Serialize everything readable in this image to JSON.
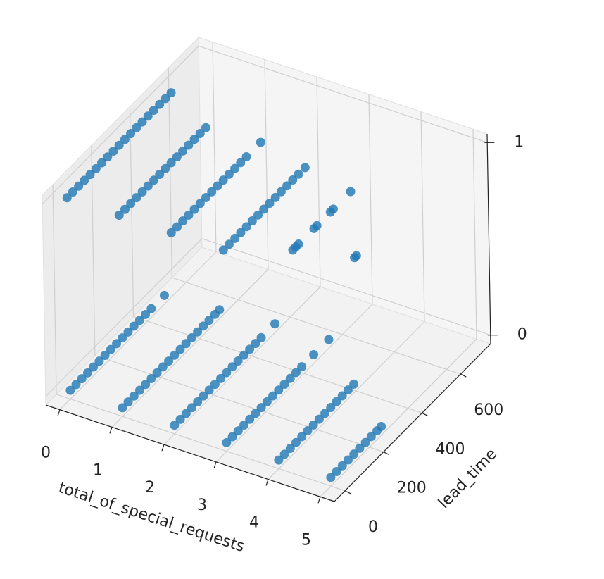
{
  "chart_data": {
    "type": "scatter3d",
    "xlabel": "total_of_special_requests",
    "ylabel": "lead_time",
    "color": "#1f77b4",
    "xlim": [
      -0.27,
      5.27
    ],
    "ylim": [
      -55,
      756
    ],
    "zlim": [
      -0.045,
      1.045
    ],
    "xticks": [
      0,
      1,
      2,
      3,
      4,
      5
    ],
    "yticks": [
      0,
      200,
      400,
      600
    ],
    "zticks": [
      0,
      1
    ],
    "groups": [
      {
        "x": 0,
        "z": 1,
        "y": [
          0,
          30,
          60,
          90,
          120,
          150,
          180,
          210,
          240,
          270,
          300,
          330,
          360,
          390,
          420,
          450,
          480,
          510,
          540
        ]
      },
      {
        "x": 1,
        "z": 1,
        "y": [
          0,
          30,
          60,
          90,
          120,
          150,
          180,
          210,
          240,
          270,
          300,
          330,
          360,
          390,
          420,
          450
        ]
      },
      {
        "x": 2,
        "z": 1,
        "y": [
          0,
          30,
          60,
          90,
          120,
          150,
          180,
          210,
          240,
          270,
          300,
          330,
          360,
          390,
          464
        ]
      },
      {
        "x": 3,
        "z": 1,
        "y": [
          0,
          30,
          60,
          90,
          120,
          150,
          180,
          210,
          240,
          270,
          300,
          330,
          360,
          390,
          424
        ]
      },
      {
        "x": 4,
        "z": 1,
        "y": [
          90,
          105,
          120,
          200,
          215,
          285,
          300,
          390
        ]
      },
      {
        "x": 5,
        "z": 1,
        "y": [
          140,
          150
        ]
      },
      {
        "x": 0,
        "z": 0,
        "y": [
          0,
          30,
          60,
          90,
          120,
          150,
          180,
          210,
          240,
          270,
          300,
          330,
          360,
          390,
          420,
          488
        ]
      },
      {
        "x": 1,
        "z": 0,
        "y": [
          0,
          30,
          60,
          90,
          120,
          150,
          180,
          210,
          240,
          270,
          300,
          330,
          360,
          390,
          420,
          450,
          480,
          504
        ]
      },
      {
        "x": 2,
        "z": 0,
        "y": [
          0,
          30,
          60,
          90,
          120,
          150,
          180,
          210,
          240,
          270,
          300,
          330,
          360,
          390,
          420,
          450,
          521
        ]
      },
      {
        "x": 3,
        "z": 0,
        "y": [
          0,
          30,
          60,
          90,
          120,
          150,
          180,
          210,
          240,
          270,
          300,
          330,
          360,
          390,
          452,
          530
        ]
      },
      {
        "x": 4,
        "z": 0,
        "y": [
          0,
          30,
          60,
          90,
          120,
          150,
          180,
          210,
          240,
          270,
          300,
          330,
          360,
          390
        ]
      },
      {
        "x": 5,
        "z": 0,
        "y": [
          0,
          30,
          60,
          90,
          120,
          150,
          180,
          210,
          240,
          262
        ]
      }
    ]
  }
}
